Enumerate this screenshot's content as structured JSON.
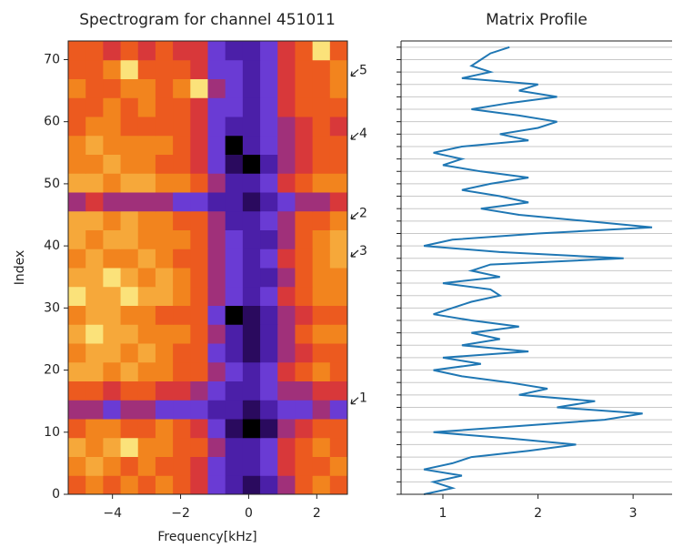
{
  "chart_data": [
    {
      "type": "heatmap",
      "title": "Spectrogram for channel 451011",
      "xlabel": "Frequency[kHz]",
      "ylabel": "Index",
      "xlim": [
        -5.3,
        2.9
      ],
      "ylim": [
        0,
        73
      ],
      "xticks": [
        {
          "value": -4,
          "label": "−4"
        },
        {
          "value": -2,
          "label": "−2"
        },
        0,
        2
      ],
      "yticks": [
        0,
        10,
        20,
        30,
        40,
        50,
        60,
        70
      ],
      "colorscale": [
        "#000000",
        "#2a0a5e",
        "#4b1fa8",
        "#6a3bd4",
        "#a0307a",
        "#d8383a",
        "#ec5a1f",
        "#f2841e",
        "#f6a83a",
        "#fbe27a"
      ],
      "z": [
        [
          6,
          7,
          6,
          7,
          6,
          7,
          6,
          5,
          3,
          2,
          1,
          2,
          4,
          6,
          7,
          6
        ],
        [
          7,
          8,
          7,
          6,
          7,
          6,
          6,
          5,
          3,
          2,
          2,
          3,
          5,
          6,
          6,
          7
        ],
        [
          8,
          7,
          8,
          9,
          7,
          7,
          6,
          6,
          4,
          2,
          2,
          3,
          5,
          6,
          7,
          6
        ],
        [
          6,
          7,
          7,
          6,
          6,
          7,
          6,
          5,
          3,
          1,
          0,
          1,
          4,
          5,
          6,
          6
        ],
        [
          4,
          4,
          3,
          4,
          4,
          3,
          3,
          3,
          2,
          2,
          1,
          2,
          3,
          3,
          4,
          3
        ],
        [
          6,
          6,
          5,
          6,
          6,
          5,
          5,
          4,
          3,
          2,
          2,
          3,
          4,
          4,
          5,
          5
        ],
        [
          8,
          8,
          7,
          8,
          7,
          7,
          6,
          6,
          4,
          3,
          2,
          3,
          5,
          6,
          7,
          6
        ],
        [
          7,
          8,
          8,
          7,
          8,
          7,
          6,
          6,
          3,
          2,
          1,
          2,
          4,
          5,
          6,
          6
        ],
        [
          8,
          9,
          8,
          8,
          7,
          7,
          7,
          6,
          4,
          2,
          1,
          2,
          4,
          6,
          7,
          7
        ],
        [
          7,
          8,
          8,
          7,
          7,
          6,
          6,
          6,
          3,
          0,
          1,
          2,
          4,
          5,
          6,
          6
        ],
        [
          9,
          8,
          8,
          9,
          8,
          8,
          7,
          6,
          4,
          3,
          2,
          3,
          5,
          6,
          7,
          7
        ],
        [
          8,
          8,
          9,
          8,
          7,
          8,
          7,
          6,
          4,
          3,
          2,
          2,
          4,
          6,
          7,
          7
        ],
        [
          7,
          8,
          7,
          7,
          8,
          7,
          6,
          6,
          4,
          3,
          2,
          3,
          5,
          6,
          7,
          8
        ],
        [
          8,
          7,
          8,
          8,
          7,
          7,
          7,
          6,
          4,
          3,
          2,
          2,
          4,
          6,
          7,
          8
        ],
        [
          8,
          8,
          7,
          8,
          7,
          7,
          6,
          6,
          4,
          2,
          2,
          3,
          4,
          6,
          6,
          7
        ],
        [
          4,
          5,
          4,
          4,
          4,
          4,
          3,
          3,
          2,
          2,
          1,
          2,
          3,
          4,
          4,
          5
        ],
        [
          8,
          8,
          7,
          8,
          8,
          7,
          7,
          6,
          4,
          2,
          2,
          3,
          5,
          6,
          7,
          7
        ],
        [
          7,
          7,
          8,
          7,
          7,
          6,
          6,
          5,
          3,
          1,
          0,
          2,
          4,
          5,
          6,
          6
        ],
        [
          7,
          8,
          7,
          7,
          7,
          7,
          6,
          5,
          3,
          0,
          2,
          3,
          4,
          5,
          6,
          6
        ],
        [
          6,
          7,
          7,
          6,
          6,
          6,
          6,
          5,
          3,
          2,
          2,
          3,
          4,
          5,
          6,
          5
        ],
        [
          6,
          6,
          7,
          6,
          7,
          6,
          6,
          5,
          3,
          3,
          2,
          3,
          5,
          6,
          6,
          6
        ],
        [
          7,
          6,
          6,
          7,
          7,
          6,
          7,
          9,
          4,
          3,
          2,
          3,
          5,
          6,
          6,
          7
        ],
        [
          6,
          6,
          7,
          9,
          6,
          6,
          6,
          5,
          3,
          3,
          2,
          3,
          5,
          6,
          6,
          7
        ],
        [
          6,
          6,
          5,
          6,
          5,
          6,
          5,
          5,
          3,
          2,
          2,
          3,
          5,
          6,
          9,
          6
        ]
      ],
      "annotations": [
        {
          "text": "1",
          "y": 15
        },
        {
          "text": "2",
          "y": 44.8
        },
        {
          "text": "3",
          "y": 38.7
        },
        {
          "text": "4",
          "y": 57.6
        },
        {
          "text": "5",
          "y": 67.8
        }
      ]
    },
    {
      "type": "line",
      "title": "Matrix Profile",
      "xlim": [
        0.56,
        3.41
      ],
      "ylim": [
        0,
        73
      ],
      "xticks": [
        1,
        2,
        3
      ],
      "yticks": [
        0,
        2,
        4,
        6,
        8,
        10,
        12,
        14,
        16,
        18,
        20,
        22,
        24,
        26,
        28,
        30,
        32,
        34,
        36,
        38,
        40,
        42,
        44,
        46,
        48,
        50,
        52,
        54,
        56,
        58,
        60,
        62,
        64,
        66,
        68,
        70,
        72
      ],
      "ytick_labels": false,
      "grid": true,
      "series": [
        {
          "color": "#1f77b4",
          "y": [
            0,
            1,
            2,
            3,
            4,
            5,
            6,
            7,
            8,
            9,
            10,
            11,
            12,
            13,
            14,
            15,
            16,
            17,
            18,
            19,
            20,
            21,
            22,
            23,
            24,
            25,
            26,
            27,
            28,
            29,
            30,
            31,
            32,
            33,
            34,
            35,
            36,
            37,
            38,
            39,
            40,
            41,
            42,
            43,
            44,
            45,
            46,
            47,
            48,
            49,
            50,
            51,
            52,
            53,
            54,
            55,
            56,
            57,
            58,
            59,
            60,
            61,
            62,
            63,
            64,
            65,
            66,
            67,
            68,
            69,
            70,
            71,
            72
          ],
          "values": [
            0.8,
            1.1,
            0.9,
            1.2,
            0.8,
            1.1,
            1.3,
            1.9,
            2.4,
            1.7,
            0.9,
            1.8,
            2.7,
            3.1,
            2.2,
            2.6,
            1.8,
            2.1,
            1.7,
            1.2,
            0.9,
            1.4,
            1.0,
            1.9,
            1.2,
            1.6,
            1.3,
            1.8,
            1.3,
            0.9,
            1.1,
            1.3,
            1.6,
            1.5,
            1.0,
            1.6,
            1.3,
            1.5,
            2.9,
            1.6,
            0.8,
            1.1,
            2.0,
            3.2,
            2.5,
            1.8,
            1.4,
            1.9,
            1.6,
            1.2,
            1.5,
            1.9,
            1.4,
            1.0,
            1.2,
            0.9,
            1.2,
            1.9,
            1.6,
            2.0,
            2.2,
            1.8,
            1.3,
            1.7,
            2.2,
            1.8,
            2.0,
            1.2,
            1.5,
            1.3,
            1.4,
            1.5,
            1.7
          ]
        }
      ]
    }
  ]
}
